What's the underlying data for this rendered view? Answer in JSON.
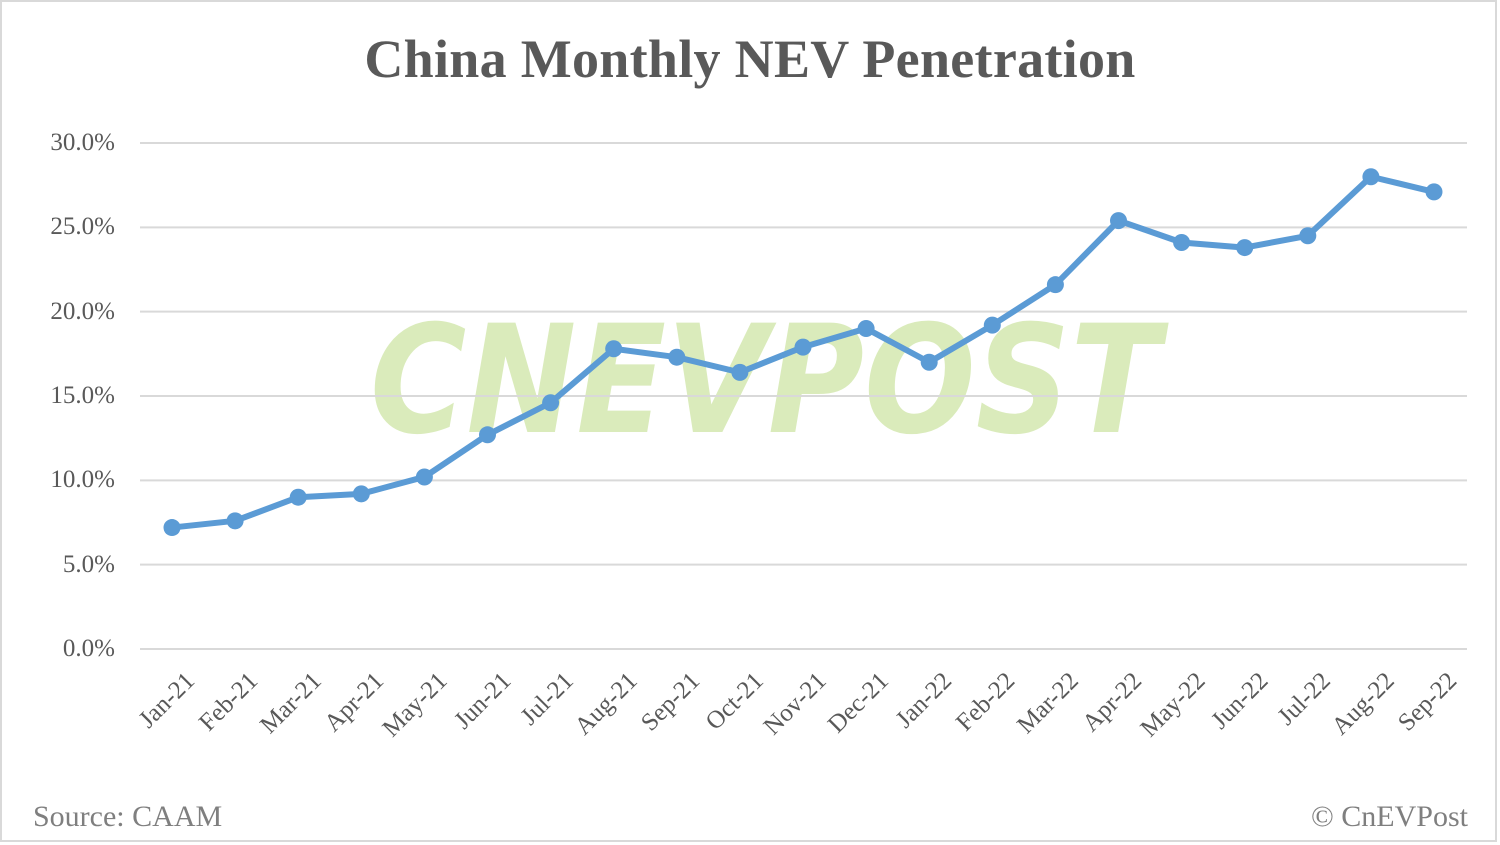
{
  "chart_data": {
    "type": "line",
    "title": "China Monthly NEV Penetration",
    "xlabel": "",
    "ylabel": "",
    "ylim": [
      0,
      30
    ],
    "yticks": [
      "0.0%",
      "5.0%",
      "10.0%",
      "15.0%",
      "20.0%",
      "25.0%",
      "30.0%"
    ],
    "grid": true,
    "legend": "none",
    "categories": [
      "Jan-21",
      "Feb-21",
      "Mar-21",
      "Apr-21",
      "May-21",
      "Jun-21",
      "Jul-21",
      "Aug-21",
      "Sep-21",
      "Oct-21",
      "Nov-21",
      "Dec-21",
      "Jan-22",
      "Feb-22",
      "Mar-22",
      "Apr-22",
      "May-22",
      "Jun-22",
      "Jul-22",
      "Aug-22",
      "Sep-22"
    ],
    "series": [
      {
        "name": "NEV Penetration",
        "color": "#5b9bd5",
        "values": [
          7.2,
          7.6,
          9.0,
          9.2,
          10.2,
          12.7,
          14.6,
          17.8,
          17.3,
          16.4,
          17.9,
          19.0,
          17.0,
          19.2,
          21.6,
          25.4,
          24.1,
          23.8,
          24.5,
          28.0,
          27.1
        ]
      }
    ]
  },
  "footer": {
    "source": "Source: CAAM",
    "copyright": "© CnEVPost"
  },
  "watermark": {
    "text": "CNEVPOST",
    "color": "#d4e8b0"
  },
  "colors": {
    "line": "#5b9bd5",
    "grid": "#d9d9d9",
    "text": "#595959"
  }
}
